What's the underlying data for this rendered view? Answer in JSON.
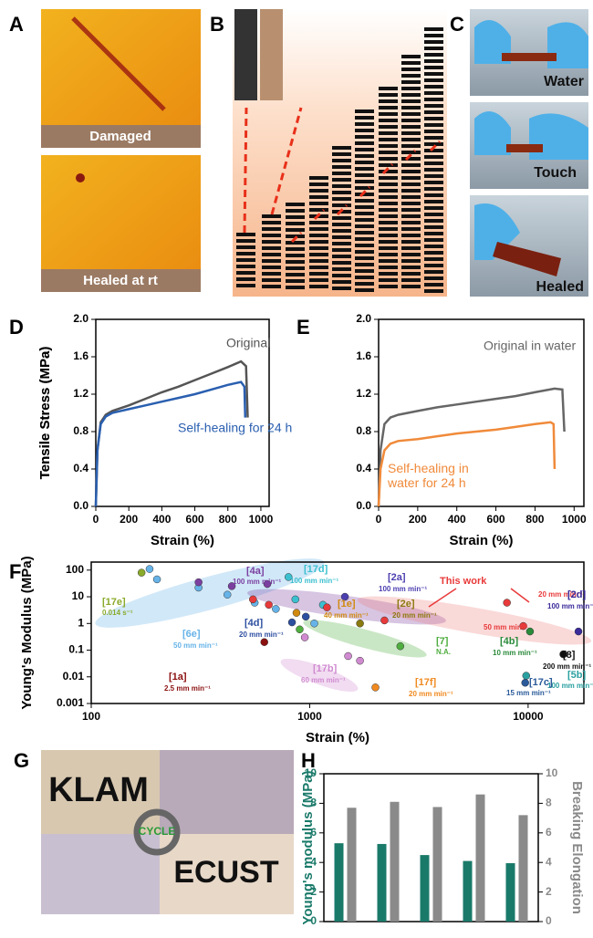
{
  "panels": [
    "A",
    "B",
    "C",
    "D",
    "E",
    "F",
    "G",
    "H"
  ],
  "photo_labels": {
    "A": [
      "Damaged",
      "Healed at rt"
    ],
    "C": [
      "Water",
      "Touch",
      "Healed"
    ],
    "G": [
      "KLAM",
      "ECUST",
      "CYCLE"
    ]
  },
  "chart_data": [
    {
      "type": "line",
      "x_label": "Strain (%)",
      "y_label": "Tensile Stress (MPa)",
      "xlim": [
        0,
        1050
      ],
      "ylim": [
        0,
        2.0
      ],
      "xticks": [
        0,
        200,
        400,
        600,
        800,
        1000
      ],
      "yticks": [
        {
          "value": 0,
          "label": "0.0"
        },
        0.4,
        0.8,
        1.2,
        1.6,
        {
          "value": 2,
          "label": "2.0"
        }
      ],
      "series": [
        {
          "name": "Original",
          "color": "#555555",
          "x": [
            0,
            10,
            30,
            60,
            100,
            200,
            300,
            400,
            500,
            600,
            700,
            800,
            880,
            910,
            920
          ],
          "values": [
            0,
            0.6,
            0.9,
            0.98,
            1.02,
            1.08,
            1.15,
            1.22,
            1.28,
            1.35,
            1.42,
            1.49,
            1.55,
            1.5,
            0.95
          ]
        },
        {
          "name": "Self-healing for 24 h",
          "color": "#2a5fb0",
          "x": [
            0,
            10,
            30,
            60,
            100,
            200,
            300,
            400,
            500,
            600,
            700,
            800,
            880,
            900,
            905
          ],
          "values": [
            0,
            0.6,
            0.88,
            0.96,
            1.0,
            1.04,
            1.08,
            1.12,
            1.16,
            1.2,
            1.25,
            1.3,
            1.33,
            1.28,
            0.95
          ]
        }
      ]
    },
    {
      "type": "line",
      "x_label": "Strain (%)",
      "y_label": "Tensile Stress (MPa)",
      "xlim": [
        0,
        1050
      ],
      "ylim": [
        0,
        2.0
      ],
      "xticks": [
        0,
        200,
        400,
        600,
        800,
        1000
      ],
      "yticks": [
        {
          "value": 0,
          "label": "0.0"
        },
        0.4,
        0.8,
        1.2,
        1.6,
        {
          "value": 2,
          "label": "2.0"
        }
      ],
      "series": [
        {
          "name": "Original in water",
          "color": "#666666",
          "x": [
            0,
            10,
            30,
            60,
            100,
            200,
            300,
            400,
            500,
            600,
            700,
            800,
            900,
            940,
            950
          ],
          "values": [
            0,
            0.6,
            0.88,
            0.95,
            0.98,
            1.02,
            1.06,
            1.09,
            1.12,
            1.15,
            1.18,
            1.22,
            1.26,
            1.25,
            0.8
          ]
        },
        {
          "name": "Self-healing in water for 24 h",
          "color": "#f08a3a",
          "x": [
            0,
            10,
            30,
            60,
            100,
            200,
            300,
            400,
            500,
            600,
            700,
            800,
            880,
            895,
            900
          ],
          "values": [
            0,
            0.4,
            0.6,
            0.67,
            0.7,
            0.72,
            0.75,
            0.78,
            0.8,
            0.82,
            0.85,
            0.88,
            0.9,
            0.88,
            0.4
          ]
        }
      ]
    },
    {
      "type": "scatter",
      "x_label": "Strain (%)",
      "y_label": "Young's Modulus (MPa)",
      "xlog": true,
      "ylog": true,
      "xlim": [
        100,
        18000
      ],
      "ylim": [
        0.001,
        200
      ],
      "xticks": [
        100,
        1000,
        10000
      ],
      "yticks": [
        0.001,
        0.01,
        0.1,
        1,
        10,
        100
      ],
      "annotations": [
        "50 mm min⁻¹"
      ],
      "series": [
        {
          "name": "[17e]",
          "note": "0.014 s⁻¹",
          "color": "#8aaa2a",
          "x": [
            170
          ],
          "values": [
            80
          ]
        },
        {
          "name": "[6e]",
          "note": "50 mm min⁻¹",
          "color": "#66b3e8",
          "x": [
            185,
            200,
            310,
            420,
            560,
            700,
            1050
          ],
          "values": [
            110,
            45,
            22,
            12,
            6,
            3.5,
            1
          ]
        },
        {
          "name": "[4a]",
          "note": "100 mm min⁻¹",
          "color": "#7b3fa0",
          "x": [
            310,
            440,
            640
          ],
          "values": [
            35,
            25,
            30
          ]
        },
        {
          "name": "[17d]",
          "note": "100 mm min⁻¹",
          "color": "#3cc0cf",
          "x": [
            800,
            860,
            1150
          ],
          "values": [
            55,
            8,
            5
          ]
        },
        {
          "name": "[2a]",
          "note": "100 mm min⁻¹",
          "color": "#4b3fb0",
          "x": [
            1450
          ],
          "values": [
            10
          ]
        },
        {
          "name": "[1e]",
          "note": "40 mm min⁻¹",
          "color": "#d08a10",
          "x": [
            870
          ],
          "values": [
            2.5
          ]
        },
        {
          "name": "[2e]",
          "note": "20 mm min⁻¹",
          "color": "#8b7a10",
          "x": [
            1700
          ],
          "values": [
            1
          ]
        },
        {
          "name": "[4d]",
          "note": "20 mm min⁻¹",
          "color": "#2d4fa0",
          "x": [
            830,
            960
          ],
          "values": [
            1.1,
            1.8
          ]
        },
        {
          "name": "[1a]",
          "note": "2.5 mm min⁻¹",
          "color": "#8b1010",
          "x": [
            620
          ],
          "values": [
            0.2
          ]
        },
        {
          "name": "[7]",
          "note": "N.A.",
          "color": "#4fae3f",
          "x": [
            900,
            2600
          ],
          "values": [
            0.6,
            0.14
          ]
        },
        {
          "name": "[17b]",
          "note": "60 mm min⁻¹",
          "color": "#d08ad0",
          "x": [
            950,
            1500,
            1700
          ],
          "values": [
            0.3,
            0.06,
            0.04
          ]
        },
        {
          "name": "[17f]",
          "note": "20 mm min⁻¹",
          "color": "#f08a20",
          "x": [
            2000
          ],
          "values": [
            0.004
          ]
        },
        {
          "name": "This work",
          "note": "20 mm min⁻¹",
          "color": "#e83a3a",
          "x": [
            550,
            650,
            1200,
            2200,
            8000,
            9500
          ],
          "values": [
            8,
            5,
            4,
            1.3,
            6,
            0.8
          ]
        },
        {
          "name": "[4b]",
          "note": "10 mm min⁻¹",
          "color": "#2a8a3a",
          "x": [
            10200
          ],
          "values": [
            0.5
          ]
        },
        {
          "name": "[8]",
          "note": "200 mm min⁻¹",
          "color": "#111111",
          "x": [
            14500
          ],
          "values": [
            0.07
          ]
        },
        {
          "name": "[2d]",
          "note": "100 mm min⁻¹",
          "color": "#3a2a9a",
          "x": [
            17000
          ],
          "values": [
            0.5
          ]
        },
        {
          "name": "[5b]",
          "note": "100 mm min⁻¹",
          "color": "#2aa0a0",
          "x": [
            9800
          ],
          "values": [
            0.011
          ]
        },
        {
          "name": "[17c]",
          "note": "15 mm min⁻¹",
          "color": "#2a5a9a",
          "x": [
            9700
          ],
          "values": [
            0.006
          ]
        }
      ]
    },
    {
      "type": "bar",
      "categories": [
        null,
        null,
        null,
        null,
        null
      ],
      "ylim": [
        0,
        10
      ],
      "yticks": [
        0,
        2,
        4,
        6,
        8,
        10
      ],
      "y2lim": [
        0,
        10
      ],
      "y2ticks": [
        0,
        2,
        4,
        6,
        8,
        10
      ],
      "series": [
        {
          "name": "Young's modulus (MPa)",
          "color": "#1a7a6a",
          "values": [
            5.3,
            5.25,
            4.5,
            4.1,
            3.95
          ]
        },
        {
          "name": "Breaking Elongation",
          "color": "#8a8a8a",
          "axis": "y2",
          "values": [
            7.7,
            8.1,
            7.75,
            8.6,
            7.2
          ]
        }
      ]
    }
  ]
}
